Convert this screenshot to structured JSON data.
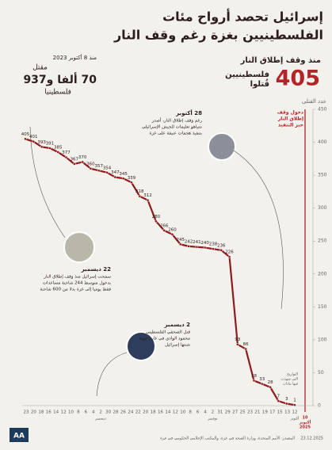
{
  "header": {
    "title_lines": [
      "إسرائيل تحصد أرواح مئات",
      "الفلسطينيين بغزة رغم وقف النار"
    ]
  },
  "summary_ceasefire": {
    "label": "منذ وقف إطلاق النار",
    "number": "405",
    "text_lines": [
      "فلسطينيين",
      "قُتلوا"
    ]
  },
  "summary_war": {
    "since": "منذ 8 أكتوبر 2023",
    "label": "مقتل",
    "number": "70 ألفا و937",
    "unit": "فلسطينيا"
  },
  "chart_data": {
    "type": "line",
    "y_label": "عدد القتلى",
    "color": "#8e1b1e",
    "values": [
      405,
      401,
      393,
      391,
      385,
      377,
      367,
      370,
      360,
      357,
      354,
      347,
      345,
      339,
      318,
      312,
      280,
      266,
      260,
      245,
      242,
      241,
      240,
      238,
      236,
      226,
      93,
      86,
      38,
      33,
      28,
      7,
      3,
      1
    ],
    "ylim": [
      0,
      450
    ],
    "yticks": [
      0,
      50,
      100,
      150,
      200,
      250,
      300,
      350,
      400,
      450
    ],
    "grid": false,
    "xtick_labels": [
      "23",
      "20",
      "18",
      "16",
      "14",
      "12",
      "10",
      "8",
      "6",
      "4",
      "2",
      "30",
      "28",
      "26",
      "24",
      "22",
      "20",
      "18",
      "16",
      "14",
      "12",
      "10",
      "8",
      "6",
      "4",
      "2",
      "31",
      "29",
      "27",
      "25",
      "23",
      "21",
      "19",
      "17",
      "15",
      "13",
      "12"
    ],
    "month_labels": [
      "ديسمبر",
      "نوفمبر",
      "أكتوبر"
    ],
    "start_label": [
      "10",
      "أكتوبر",
      "2025"
    ],
    "ceasefire_label": [
      "دخول وقف",
      "إطلاق النار",
      "حيز التنفيذ"
    ],
    "note": [
      "التواريخ",
      "التي شهدت",
      "فيها بيانات"
    ],
    "annotations": [
      {
        "title": "28 أكتوبر",
        "lines": [
          "رغم وقف إطلاق النار، أصدر",
          "نتنياهو تعليمات للجيش الإسرائيلي",
          "بتنفيذ هجمات عنيفة على غزة"
        ]
      },
      {
        "title": "22 ديسمبر",
        "lines": [
          "سمحت إسرائيل منذ وقف إطلاق النار",
          "بدخول متوسط 244 شاحنة مساعدات",
          "فقط يوميا إلى غزة بدلا من 600 شاحنة"
        ]
      },
      {
        "title": "2 ديسمبر",
        "lines": [
          "قتل الصحفي الفلسطيني",
          "محمود الوادي في غارة جوية",
          "شنتها إسرائيل"
        ]
      }
    ]
  },
  "footer": {
    "source": "المصدر: الأمم المتحدة، وزارة الصحة في غزة، والمكتب الإعلامي الحكومي في غزة",
    "date": "23.12.2025",
    "logo": "AA"
  }
}
